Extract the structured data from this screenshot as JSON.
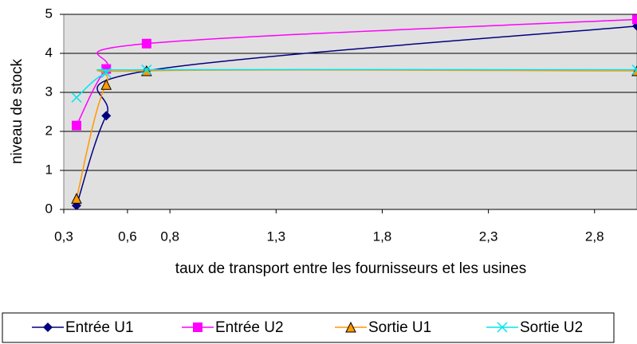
{
  "chart_data": {
    "type": "line",
    "x_label": "taux de transport entre les fournisseurs et les usines",
    "y_label": "niveau de stock",
    "x": [
      0.36,
      0.5,
      0.69,
      3.0
    ],
    "series": [
      {
        "name": "Entrée U1",
        "color": "#000080",
        "marker": "diamond",
        "values": [
          0.1,
          2.4,
          3.55,
          4.7
        ]
      },
      {
        "name": "Entrée U2",
        "color": "#ff00ff",
        "marker": "square",
        "values": [
          2.15,
          3.6,
          4.25,
          4.87
        ]
      },
      {
        "name": "Sortie U1",
        "color": "#ff9900",
        "marker": "triangle",
        "values": [
          0.28,
          3.2,
          3.55,
          3.55
        ]
      },
      {
        "name": "Sortie U2",
        "color": "#00e5ee",
        "marker": "x",
        "values": [
          2.87,
          3.5,
          3.58,
          3.58
        ]
      }
    ],
    "xlim": [
      0.3,
      3.0
    ],
    "xticks": [
      {
        "value": 0.3,
        "label": "0,3"
      },
      {
        "value": 0.6,
        "label": "0,6"
      },
      {
        "value": 0.8,
        "label": "0,8"
      },
      {
        "value": 1.3,
        "label": "1,3"
      },
      {
        "value": 1.8,
        "label": "1,8"
      },
      {
        "value": 2.3,
        "label": "2,3"
      },
      {
        "value": 2.8,
        "label": "2,8"
      }
    ],
    "ylim": [
      0,
      5
    ],
    "yticks": [
      0,
      1,
      2,
      3,
      4,
      5
    ],
    "grid": true,
    "smooth": true,
    "legend": "bottom"
  }
}
